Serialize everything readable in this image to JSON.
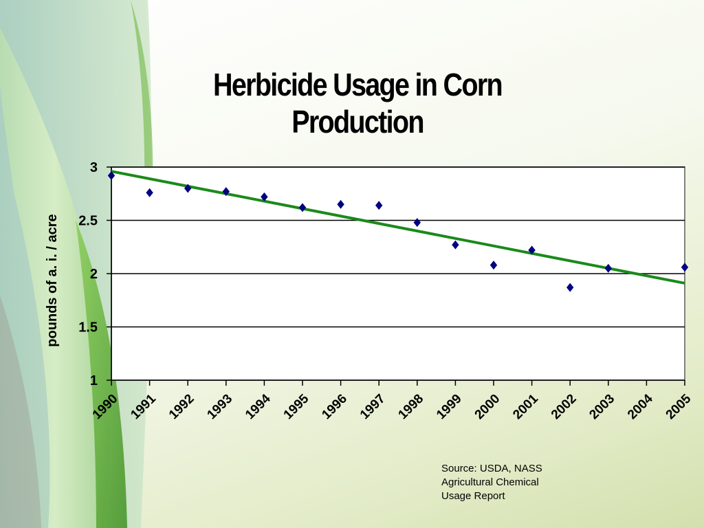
{
  "slide": {
    "title": "Herbicide Usage in Corn Production",
    "source_lines": [
      "Source: USDA, NASS",
      "Agricultural Chemical",
      "Usage Report"
    ]
  },
  "colors": {
    "marker": "#000080",
    "trendline": "#1a8a1a",
    "gridline": "#000000",
    "plot_border": "#808080",
    "leaf_light": "#c6e4a8",
    "leaf_dark": "#6fae4d"
  },
  "chart_data": {
    "type": "scatter",
    "title": "Herbicide Usage in Corn Production",
    "xlabel": "",
    "ylabel": "pounds of a. i. / acre",
    "categories": [
      "1990",
      "1991",
      "1992",
      "1993",
      "1994",
      "1995",
      "1996",
      "1997",
      "1998",
      "1999",
      "2000",
      "2001",
      "2002",
      "2003",
      "2004",
      "2005"
    ],
    "series": [
      {
        "marker": "diamond",
        "values": [
          2.92,
          2.76,
          2.8,
          2.77,
          2.72,
          2.62,
          2.65,
          2.64,
          2.48,
          2.27,
          2.08,
          2.22,
          1.87,
          2.05,
          null,
          2.06
        ]
      }
    ],
    "trendline": {
      "type": "linear",
      "start": 2.96,
      "end": 1.91
    },
    "ylim": [
      1,
      3
    ],
    "yticks": [
      1,
      1.5,
      2,
      2.5,
      3
    ],
    "ytick_labels": [
      "1",
      "1.5",
      "2",
      "2.5",
      "3"
    ],
    "grid": true,
    "legend": "none"
  }
}
